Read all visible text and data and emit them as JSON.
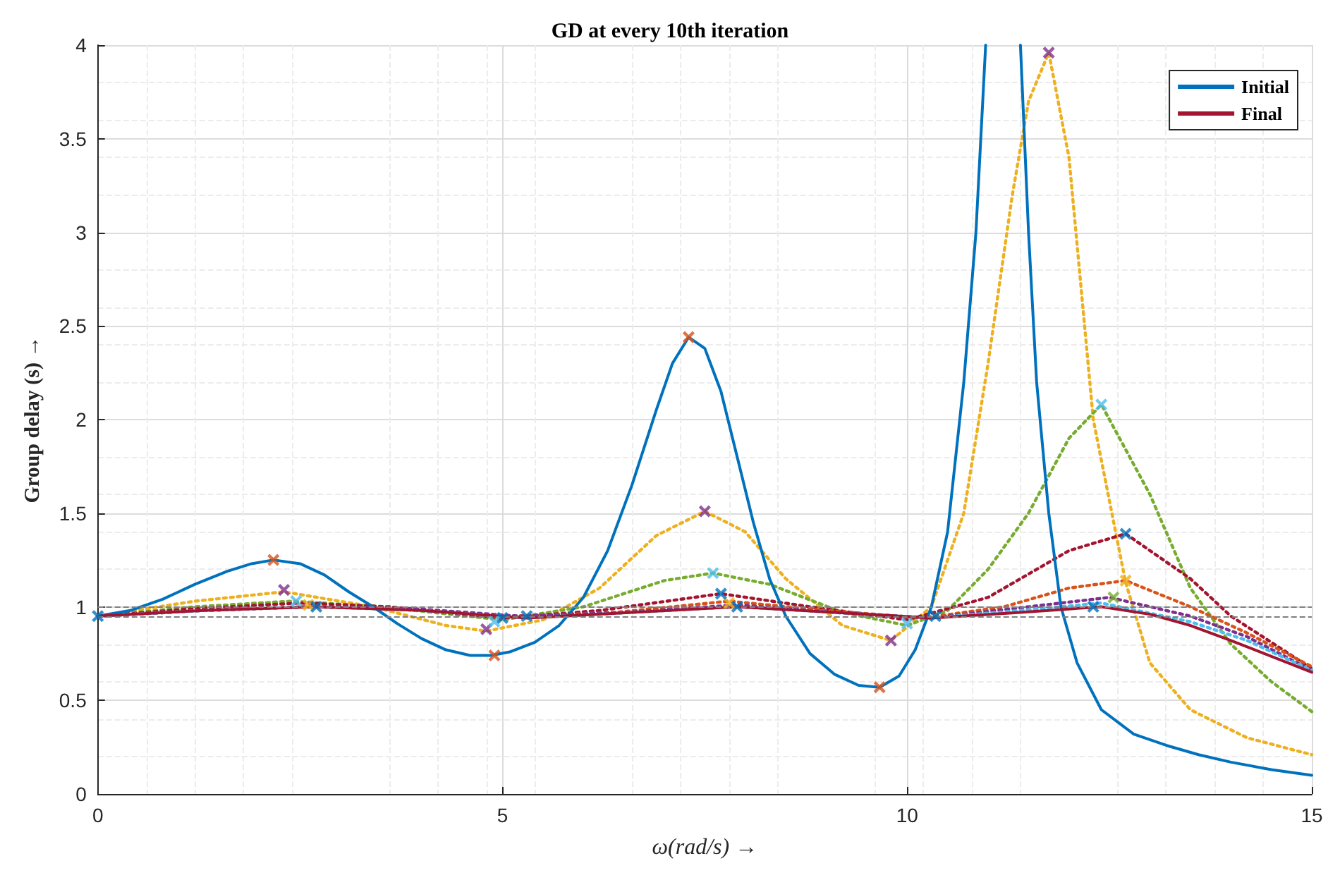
{
  "chart_data": {
    "type": "line",
    "title": "GD at every 10th iteration",
    "xlabel": "ω(rad/s) →",
    "ylabel": "Group delay (s) →",
    "xlim": [
      0,
      15
    ],
    "xticks": [
      0,
      5,
      10,
      15
    ],
    "ylim": [
      0,
      4
    ],
    "yticks": [
      0,
      0.5,
      1,
      1.5,
      2,
      2.5,
      3,
      3.5,
      4
    ],
    "grid": true,
    "legend": "top right",
    "marker": "none",
    "ref_lines": [
      {
        "axis": "y",
        "value": 1,
        "color": "#7f7f7f",
        "line_style": "dashed"
      },
      {
        "axis": "y",
        "value": 0.95,
        "color": "#7f7f7f",
        "line_style": "dashed"
      }
    ],
    "series": [
      {
        "name": "Initial",
        "color": "#0072bd",
        "line_style": "solid",
        "x": [
          0,
          0.4,
          0.8,
          1.2,
          1.6,
          1.9,
          2.17,
          2.5,
          2.8,
          3.1,
          3.4,
          3.7,
          4.0,
          4.3,
          4.6,
          4.86,
          5.1,
          5.4,
          5.7,
          6.0,
          6.3,
          6.6,
          6.9,
          7.1,
          7.3,
          7.5,
          7.7,
          7.9,
          8.1,
          8.3,
          8.5,
          8.8,
          9.1,
          9.4,
          9.66,
          9.9,
          10.1,
          10.3,
          10.5,
          10.7,
          10.85,
          10.97,
          11.17,
          11.4,
          11.5,
          11.6,
          11.75,
          11.9,
          12.1,
          12.4,
          12.8,
          13.2,
          13.6,
          14.0,
          14.5,
          15
        ],
        "values": [
          0.95,
          0.98,
          1.04,
          1.12,
          1.19,
          1.23,
          1.25,
          1.23,
          1.17,
          1.08,
          1.0,
          0.91,
          0.83,
          0.77,
          0.74,
          0.74,
          0.76,
          0.81,
          0.9,
          1.05,
          1.3,
          1.65,
          2.05,
          2.3,
          2.44,
          2.38,
          2.15,
          1.8,
          1.45,
          1.15,
          0.95,
          0.75,
          0.64,
          0.58,
          0.57,
          0.63,
          0.77,
          1.0,
          1.4,
          2.2,
          3.0,
          4.0,
          null,
          4.0,
          3.0,
          2.2,
          1.5,
          1.0,
          0.7,
          0.45,
          0.32,
          0.26,
          0.21,
          0.17,
          0.13,
          0.1
        ]
      },
      {
        "color": "#edb120",
        "line_style": "dotted",
        "x": [
          0,
          1.2,
          2.3,
          3.4,
          4.3,
          4.8,
          5.5,
          6.2,
          6.9,
          7.5,
          8.0,
          8.5,
          9.2,
          9.8,
          10.3,
          10.7,
          11.0,
          11.3,
          11.5,
          11.75,
          12.0,
          12.3,
          12.7,
          13.0,
          13.5,
          14.2,
          15
        ],
        "values": [
          0.95,
          1.03,
          1.08,
          1.0,
          0.9,
          0.87,
          0.93,
          1.1,
          1.38,
          1.51,
          1.4,
          1.15,
          0.9,
          0.82,
          1.0,
          1.5,
          2.3,
          3.2,
          3.7,
          3.96,
          3.4,
          2.0,
          1.13,
          0.7,
          0.45,
          0.3,
          0.21
        ]
      },
      {
        "color": "#77ac30",
        "line_style": "dotted",
        "x": [
          0,
          1.2,
          2.4,
          3.5,
          5.0,
          6.0,
          7.0,
          7.6,
          8.3,
          9.2,
          10.0,
          10.5,
          11.0,
          11.5,
          12.0,
          12.4,
          13.0,
          13.5,
          14.0,
          14.5,
          15
        ],
        "values": [
          0.95,
          1.0,
          1.03,
          1.0,
          0.93,
          1.0,
          1.14,
          1.18,
          1.12,
          0.97,
          0.9,
          0.98,
          1.2,
          1.5,
          1.9,
          2.08,
          1.6,
          1.1,
          0.8,
          0.6,
          0.44
        ]
      },
      {
        "color": "#a2142f",
        "line_style": "dotted",
        "x": [
          0,
          1.2,
          2.5,
          3.6,
          5.0,
          6.2,
          7.7,
          8.8,
          10.0,
          11.0,
          12.0,
          12.7,
          13.5,
          14.0,
          15
        ],
        "values": [
          0.95,
          0.99,
          1.02,
          1.0,
          0.94,
          0.98,
          1.07,
          1.0,
          0.93,
          1.05,
          1.3,
          1.39,
          1.15,
          0.95,
          0.67
        ]
      },
      {
        "color": "#d95319",
        "line_style": "dotted",
        "x": [
          0,
          1.3,
          2.6,
          3.8,
          5.1,
          6.4,
          7.8,
          9.0,
          10.2,
          11.2,
          12.0,
          12.7,
          13.5,
          14.2,
          15
        ],
        "values": [
          0.95,
          0.98,
          1.0,
          0.99,
          0.95,
          0.97,
          1.03,
          0.98,
          0.94,
          1.0,
          1.1,
          1.14,
          1.0,
          0.86,
          0.68
        ]
      },
      {
        "color": "#7e2f8e",
        "line_style": "dotted",
        "x": [
          0,
          1.3,
          2.6,
          3.9,
          5.2,
          6.5,
          7.9,
          9.1,
          10.3,
          11.3,
          12.5,
          13.5,
          14.2,
          15
        ],
        "values": [
          0.95,
          0.98,
          1.0,
          0.99,
          0.95,
          0.97,
          1.01,
          0.97,
          0.94,
          0.99,
          1.05,
          0.95,
          0.84,
          0.66
        ]
      },
      {
        "color": "#4dbeee",
        "line_style": "dotted",
        "x": [
          0,
          1.3,
          2.7,
          4.0,
          5.3,
          6.6,
          7.9,
          9.1,
          10.3,
          11.4,
          12.4,
          13.5,
          14.2,
          15
        ],
        "values": [
          0.95,
          0.98,
          1.0,
          0.98,
          0.94,
          0.97,
          1.0,
          0.97,
          0.94,
          0.98,
          1.02,
          0.92,
          0.82,
          0.66
        ]
      },
      {
        "name": "Final",
        "color": "#a2142f",
        "line_style": "solid",
        "x": [
          0,
          1.3,
          2.7,
          4.0,
          5.3,
          6.6,
          7.9,
          9.1,
          10.3,
          11.4,
          12.4,
          13.0,
          13.5,
          14.0,
          15
        ],
        "values": [
          0.95,
          0.98,
          1.0,
          0.98,
          0.94,
          0.97,
          1.0,
          0.97,
          0.94,
          0.97,
          1.0,
          0.96,
          0.9,
          0.82,
          0.65
        ]
      },
      {
        "type": "scatter",
        "marker": "cross",
        "color": "#d95319",
        "x": [
          2.17,
          4.9,
          7.3,
          9.66
        ],
        "values": [
          1.25,
          0.74,
          2.44,
          0.57
        ]
      },
      {
        "type": "scatter",
        "marker": "cross",
        "color": "#7e2f8e",
        "x": [
          2.3,
          4.8,
          7.5,
          9.8,
          11.75
        ],
        "values": [
          1.09,
          0.88,
          1.51,
          0.82,
          3.96
        ]
      },
      {
        "type": "scatter",
        "marker": "cross",
        "color": "#4dbeee",
        "x": [
          2.45,
          4.9,
          7.6,
          10.0,
          12.4
        ],
        "values": [
          1.03,
          0.92,
          1.18,
          0.91,
          2.08
        ]
      },
      {
        "type": "scatter",
        "marker": "cross",
        "color": "#edb120",
        "x": [
          2.6,
          7.8,
          12.7
        ],
        "values": [
          1.01,
          1.02,
          1.14
        ]
      },
      {
        "type": "scatter",
        "marker": "cross",
        "color": "#77ac30",
        "x": [
          12.55
        ],
        "values": [
          1.05
        ]
      },
      {
        "type": "scatter",
        "marker": "cross",
        "color": "#0072bd",
        "x": [
          0,
          2.7,
          5.0,
          5.3,
          7.7,
          7.9,
          10.35,
          12.3,
          12.7
        ],
        "values": [
          0.95,
          1.0,
          0.94,
          0.95,
          1.07,
          1.0,
          0.95,
          1.0,
          1.39
        ]
      }
    ]
  }
}
